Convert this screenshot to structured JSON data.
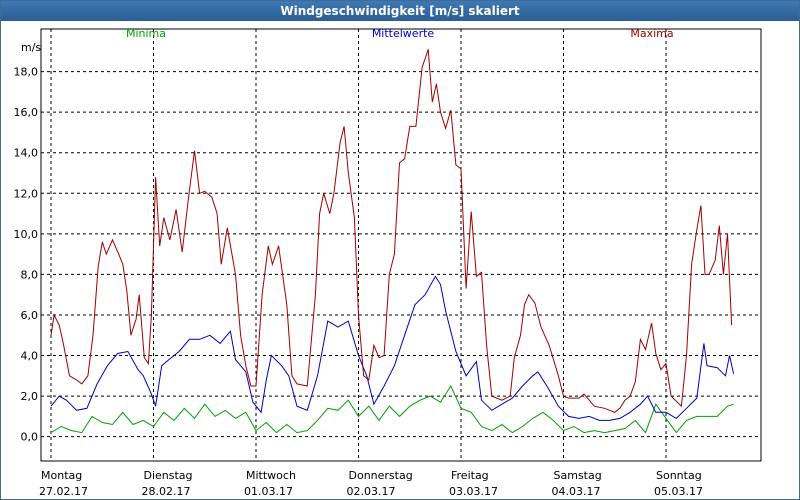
{
  "window": {
    "title": "Windgeschwindigkeit [m/s] skaliert"
  },
  "chart_data": {
    "type": "line",
    "title": "Windgeschwindigkeit [m/s] skaliert",
    "ylabel": "m/s",
    "xlabel": "",
    "ylim": [
      -1.2,
      20.1
    ],
    "y_ticks": [
      "0,0",
      "2,0",
      "4,0",
      "6,0",
      "8,0",
      "10,0",
      "12,0",
      "14,0",
      "16,0",
      "18,0"
    ],
    "y_tick_values": [
      0,
      2,
      4,
      6,
      8,
      10,
      12,
      14,
      16,
      18
    ],
    "days": [
      {
        "weekday": "Montag",
        "date": "27.02.17"
      },
      {
        "weekday": "Dienstag",
        "date": "28.02.17"
      },
      {
        "weekday": "Mittwoch",
        "date": "01.03.17"
      },
      {
        "weekday": "Donnerstag",
        "date": "02.03.17"
      },
      {
        "weekday": "Freitag",
        "date": "03.03.17"
      },
      {
        "weekday": "Samstag",
        "date": "04.03.17"
      },
      {
        "weekday": "Sonntag",
        "date": "05.03.17"
      }
    ],
    "x_unit": "day index (0 = Montag 27.02.17 00:00)",
    "grid": true,
    "series": [
      {
        "name": "Minima",
        "color": "#00a000",
        "points": [
          [
            0.0,
            0.2
          ],
          [
            0.1,
            0.5
          ],
          [
            0.2,
            0.3
          ],
          [
            0.3,
            0.2
          ],
          [
            0.4,
            1.0
          ],
          [
            0.5,
            0.7
          ],
          [
            0.6,
            0.6
          ],
          [
            0.7,
            1.2
          ],
          [
            0.8,
            0.6
          ],
          [
            0.9,
            0.8
          ],
          [
            1.0,
            0.5
          ],
          [
            1.1,
            1.2
          ],
          [
            1.2,
            0.8
          ],
          [
            1.3,
            1.4
          ],
          [
            1.4,
            0.9
          ],
          [
            1.5,
            1.6
          ],
          [
            1.6,
            1.0
          ],
          [
            1.7,
            1.3
          ],
          [
            1.8,
            0.9
          ],
          [
            1.9,
            1.2
          ],
          [
            2.0,
            0.3
          ],
          [
            2.1,
            0.7
          ],
          [
            2.2,
            0.2
          ],
          [
            2.3,
            0.6
          ],
          [
            2.4,
            0.2
          ],
          [
            2.5,
            0.3
          ],
          [
            2.6,
            0.8
          ],
          [
            2.7,
            1.4
          ],
          [
            2.8,
            1.3
          ],
          [
            2.9,
            1.8
          ],
          [
            3.0,
            1.0
          ],
          [
            3.1,
            1.5
          ],
          [
            3.2,
            0.8
          ],
          [
            3.3,
            1.5
          ],
          [
            3.4,
            1.0
          ],
          [
            3.5,
            1.5
          ],
          [
            3.6,
            1.8
          ],
          [
            3.7,
            2.0
          ],
          [
            3.8,
            1.7
          ],
          [
            3.9,
            2.5
          ],
          [
            4.0,
            1.4
          ],
          [
            4.1,
            1.2
          ],
          [
            4.2,
            0.5
          ],
          [
            4.3,
            0.3
          ],
          [
            4.4,
            0.6
          ],
          [
            4.5,
            0.2
          ],
          [
            4.6,
            0.5
          ],
          [
            4.7,
            0.9
          ],
          [
            4.8,
            1.2
          ],
          [
            4.9,
            0.8
          ],
          [
            5.0,
            0.3
          ],
          [
            5.1,
            0.5
          ],
          [
            5.2,
            0.2
          ],
          [
            5.3,
            0.3
          ],
          [
            5.4,
            0.2
          ],
          [
            5.5,
            0.3
          ],
          [
            5.6,
            0.4
          ],
          [
            5.7,
            0.8
          ],
          [
            5.8,
            0.2
          ],
          [
            5.9,
            1.6
          ],
          [
            6.0,
            0.9
          ],
          [
            6.1,
            0.2
          ],
          [
            6.2,
            0.8
          ],
          [
            6.3,
            1.0
          ],
          [
            6.4,
            1.0
          ],
          [
            6.5,
            1.0
          ],
          [
            6.6,
            1.5
          ],
          [
            6.66,
            1.6
          ]
        ]
      },
      {
        "name": "Mittelwerte",
        "color": "#0000c0",
        "points": [
          [
            0.0,
            1.5
          ],
          [
            0.08,
            2.0
          ],
          [
            0.15,
            1.8
          ],
          [
            0.25,
            1.3
          ],
          [
            0.35,
            1.4
          ],
          [
            0.45,
            2.6
          ],
          [
            0.55,
            3.5
          ],
          [
            0.65,
            4.1
          ],
          [
            0.75,
            4.2
          ],
          [
            0.85,
            3.3
          ],
          [
            0.9,
            3.0
          ],
          [
            0.98,
            2.1
          ],
          [
            1.02,
            1.5
          ],
          [
            1.08,
            3.5
          ],
          [
            1.15,
            3.8
          ],
          [
            1.25,
            4.2
          ],
          [
            1.35,
            4.8
          ],
          [
            1.45,
            4.8
          ],
          [
            1.55,
            5.0
          ],
          [
            1.65,
            4.6
          ],
          [
            1.75,
            5.2
          ],
          [
            1.8,
            3.8
          ],
          [
            1.9,
            3.2
          ],
          [
            1.97,
            1.7
          ],
          [
            2.05,
            1.2
          ],
          [
            2.1,
            2.8
          ],
          [
            2.15,
            4.0
          ],
          [
            2.25,
            3.5
          ],
          [
            2.32,
            3.0
          ],
          [
            2.4,
            1.5
          ],
          [
            2.5,
            1.3
          ],
          [
            2.6,
            3.0
          ],
          [
            2.7,
            5.7
          ],
          [
            2.8,
            5.4
          ],
          [
            2.9,
            5.7
          ],
          [
            3.0,
            4.0
          ],
          [
            3.08,
            3.0
          ],
          [
            3.15,
            1.6
          ],
          [
            3.25,
            2.5
          ],
          [
            3.35,
            3.5
          ],
          [
            3.45,
            5.0
          ],
          [
            3.55,
            6.5
          ],
          [
            3.65,
            7.0
          ],
          [
            3.75,
            7.9
          ],
          [
            3.8,
            7.5
          ],
          [
            3.85,
            6.2
          ],
          [
            3.95,
            4.2
          ],
          [
            4.05,
            3.0
          ],
          [
            4.15,
            3.7
          ],
          [
            4.2,
            1.8
          ],
          [
            4.3,
            1.3
          ],
          [
            4.4,
            1.6
          ],
          [
            4.5,
            1.9
          ],
          [
            4.6,
            2.5
          ],
          [
            4.7,
            3.0
          ],
          [
            4.75,
            3.2
          ],
          [
            4.85,
            2.4
          ],
          [
            4.95,
            1.5
          ],
          [
            5.05,
            1.0
          ],
          [
            5.15,
            0.9
          ],
          [
            5.25,
            1.0
          ],
          [
            5.35,
            0.8
          ],
          [
            5.45,
            0.8
          ],
          [
            5.55,
            0.9
          ],
          [
            5.65,
            1.2
          ],
          [
            5.75,
            1.6
          ],
          [
            5.82,
            2.0
          ],
          [
            5.9,
            1.2
          ],
          [
            6.0,
            1.2
          ],
          [
            6.1,
            0.9
          ],
          [
            6.2,
            1.4
          ],
          [
            6.3,
            1.9
          ],
          [
            6.37,
            4.6
          ],
          [
            6.4,
            3.5
          ],
          [
            6.5,
            3.4
          ],
          [
            6.58,
            3.0
          ],
          [
            6.62,
            4.0
          ],
          [
            6.66,
            3.1
          ]
        ]
      },
      {
        "name": "Maxima",
        "color": "#a00000",
        "points": [
          [
            0.0,
            5.0
          ],
          [
            0.03,
            6.0
          ],
          [
            0.08,
            5.5
          ],
          [
            0.12,
            4.6
          ],
          [
            0.18,
            3.0
          ],
          [
            0.25,
            2.8
          ],
          [
            0.3,
            2.6
          ],
          [
            0.36,
            3.0
          ],
          [
            0.41,
            5.0
          ],
          [
            0.46,
            8.4
          ],
          [
            0.5,
            9.6
          ],
          [
            0.54,
            9.0
          ],
          [
            0.6,
            9.7
          ],
          [
            0.66,
            9.0
          ],
          [
            0.7,
            8.5
          ],
          [
            0.74,
            7.2
          ],
          [
            0.78,
            5.0
          ],
          [
            0.83,
            5.8
          ],
          [
            0.86,
            7.0
          ],
          [
            0.91,
            3.9
          ],
          [
            0.95,
            3.6
          ],
          [
            0.98,
            6.0
          ],
          [
            1.02,
            12.8
          ],
          [
            1.06,
            9.4
          ],
          [
            1.1,
            10.8
          ],
          [
            1.16,
            9.7
          ],
          [
            1.22,
            11.2
          ],
          [
            1.28,
            9.1
          ],
          [
            1.34,
            11.7
          ],
          [
            1.4,
            14.1
          ],
          [
            1.45,
            12.0
          ],
          [
            1.5,
            12.1
          ],
          [
            1.57,
            11.8
          ],
          [
            1.62,
            11.0
          ],
          [
            1.66,
            8.5
          ],
          [
            1.72,
            10.3
          ],
          [
            1.8,
            8.0
          ],
          [
            1.85,
            5.0
          ],
          [
            1.9,
            3.5
          ],
          [
            1.95,
            2.5
          ],
          [
            2.0,
            2.5
          ],
          [
            2.06,
            7.0
          ],
          [
            2.12,
            9.4
          ],
          [
            2.16,
            8.5
          ],
          [
            2.22,
            9.4
          ],
          [
            2.26,
            8.0
          ],
          [
            2.3,
            6.5
          ],
          [
            2.35,
            3.0
          ],
          [
            2.4,
            2.6
          ],
          [
            2.5,
            2.5
          ],
          [
            2.58,
            7.0
          ],
          [
            2.62,
            11.0
          ],
          [
            2.66,
            12.0
          ],
          [
            2.72,
            11.0
          ],
          [
            2.76,
            12.0
          ],
          [
            2.82,
            14.5
          ],
          [
            2.86,
            15.3
          ],
          [
            2.9,
            13.0
          ],
          [
            2.96,
            10.8
          ],
          [
            3.0,
            6.0
          ],
          [
            3.05,
            3.0
          ],
          [
            3.1,
            2.8
          ],
          [
            3.15,
            4.5
          ],
          [
            3.2,
            3.9
          ],
          [
            3.25,
            4.0
          ],
          [
            3.3,
            8.0
          ],
          [
            3.35,
            9.0
          ],
          [
            3.4,
            13.5
          ],
          [
            3.45,
            13.7
          ],
          [
            3.5,
            15.3
          ],
          [
            3.56,
            15.3
          ],
          [
            3.62,
            18.2
          ],
          [
            3.68,
            19.1
          ],
          [
            3.72,
            16.5
          ],
          [
            3.76,
            17.4
          ],
          [
            3.8,
            16.0
          ],
          [
            3.85,
            15.2
          ],
          [
            3.9,
            16.1
          ],
          [
            3.95,
            13.4
          ],
          [
            4.0,
            13.2
          ],
          [
            4.05,
            7.3
          ],
          [
            4.1,
            11.1
          ],
          [
            4.15,
            7.9
          ],
          [
            4.2,
            8.1
          ],
          [
            4.25,
            4.5
          ],
          [
            4.3,
            2.0
          ],
          [
            4.4,
            1.8
          ],
          [
            4.48,
            2.0
          ],
          [
            4.52,
            3.9
          ],
          [
            4.58,
            5.0
          ],
          [
            4.62,
            6.5
          ],
          [
            4.66,
            7.0
          ],
          [
            4.72,
            6.6
          ],
          [
            4.78,
            5.4
          ],
          [
            4.86,
            4.5
          ],
          [
            4.95,
            3.0
          ],
          [
            5.0,
            2.0
          ],
          [
            5.05,
            1.9
          ],
          [
            5.15,
            1.9
          ],
          [
            5.2,
            2.1
          ],
          [
            5.3,
            1.5
          ],
          [
            5.4,
            1.4
          ],
          [
            5.5,
            1.2
          ],
          [
            5.55,
            1.4
          ],
          [
            5.6,
            1.8
          ],
          [
            5.65,
            2.0
          ],
          [
            5.7,
            2.7
          ],
          [
            5.75,
            4.8
          ],
          [
            5.8,
            4.3
          ],
          [
            5.86,
            5.6
          ],
          [
            5.9,
            4.1
          ],
          [
            5.95,
            3.3
          ],
          [
            6.0,
            3.6
          ],
          [
            6.05,
            2.0
          ],
          [
            6.15,
            1.5
          ],
          [
            6.2,
            4.0
          ],
          [
            6.25,
            8.5
          ],
          [
            6.3,
            10.2
          ],
          [
            6.34,
            11.4
          ],
          [
            6.38,
            8.0
          ],
          [
            6.42,
            8.0
          ],
          [
            6.48,
            8.7
          ],
          [
            6.52,
            10.4
          ],
          [
            6.56,
            8.0
          ],
          [
            6.6,
            10.0
          ],
          [
            6.64,
            5.5
          ]
        ]
      }
    ]
  }
}
